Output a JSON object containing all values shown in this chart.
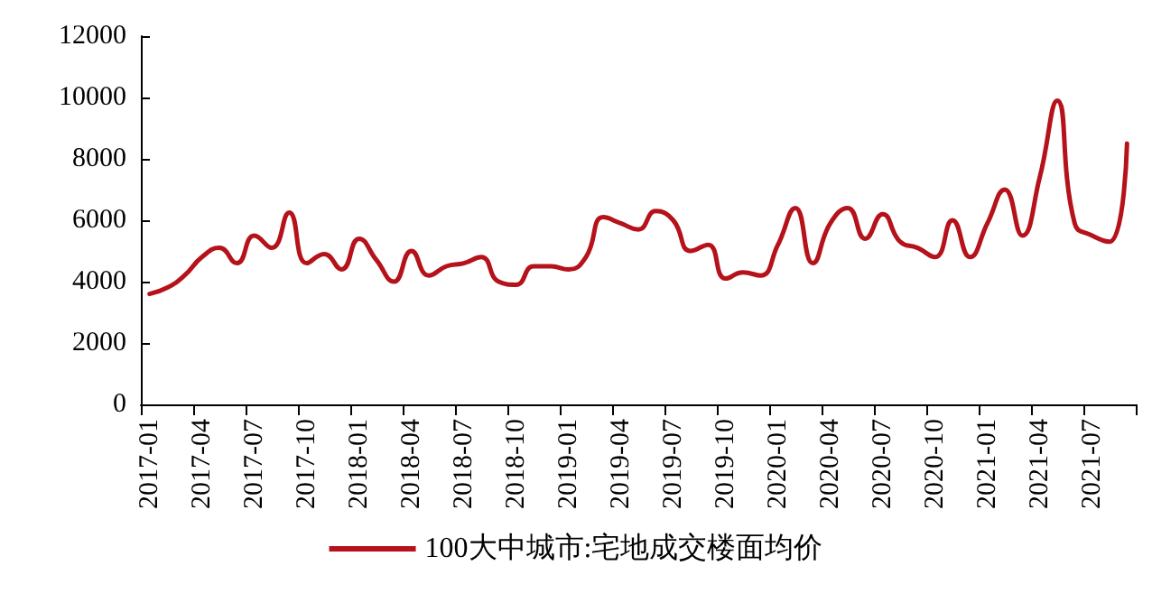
{
  "chart_data": {
    "type": "line",
    "categories": [
      "2017-01",
      null,
      null,
      "2017-04",
      null,
      null,
      "2017-07",
      null,
      null,
      "2017-10",
      null,
      null,
      "2018-01",
      null,
      null,
      "2018-04",
      null,
      null,
      "2018-07",
      null,
      null,
      "2018-10",
      null,
      null,
      "2019-01",
      null,
      null,
      "2019-04",
      null,
      null,
      "2019-07",
      null,
      null,
      "2019-10",
      null,
      null,
      "2020-01",
      null,
      null,
      "2020-04",
      null,
      null,
      "2020-07",
      null,
      null,
      "2020-10",
      null,
      null,
      "2021-01",
      null,
      null,
      "2021-04",
      null,
      null,
      "2021-07",
      null,
      null
    ],
    "series": [
      {
        "name": "100大中城市:宅地成交楼面均价",
        "color": "#b5121b",
        "values": [
          3600,
          3800,
          4200,
          4800,
          5100,
          4600,
          5500,
          5100,
          6250,
          4600,
          4900,
          4400,
          5400,
          4700,
          4000,
          5000,
          4200,
          4500,
          4600,
          4800,
          4000,
          3900,
          4500,
          4500,
          4400,
          4800,
          6100,
          5900,
          5700,
          6300,
          6000,
          5000,
          5200,
          4100,
          4300,
          4200,
          5200,
          6400,
          4600,
          5900,
          6400,
          5400,
          6200,
          5300,
          5100,
          4800,
          6000,
          4800,
          5900,
          7000,
          5500,
          7400,
          9900,
          5900,
          5500,
          5300,
          8500
        ]
      }
    ],
    "ylim": [
      0,
      12000
    ],
    "yticks": [
      0,
      2000,
      4000,
      6000,
      8000,
      10000,
      12000
    ],
    "grid": false,
    "legend": "bottom",
    "marker": "none",
    "line_style": "solid"
  }
}
